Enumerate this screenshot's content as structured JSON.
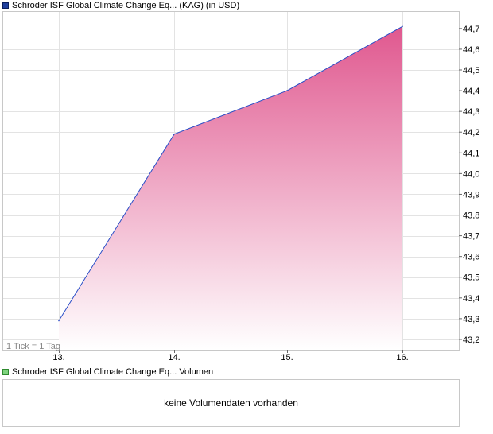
{
  "legend_price": {
    "label": "Schroder ISF Global Climate Change Eq... (KAG) (in USD)",
    "color": "#1f3f9e"
  },
  "legend_volume": {
    "label": "Schroder ISF Global Climate Change Eq... Volumen",
    "color": "#7ed37e"
  },
  "tick_note": "1 Tick = 1 Tag",
  "volume_message": "keine Volumendaten vorhanden",
  "chart_data": {
    "type": "area",
    "categories": [
      "13.",
      "14.",
      "15.",
      "16."
    ],
    "values": [
      43.29,
      44.19,
      44.4,
      44.71
    ],
    "y_ticks": [
      "43,2",
      "43,3",
      "43,4",
      "43,5",
      "43,6",
      "43,7",
      "43,8",
      "43,9",
      "44,0",
      "44,1",
      "44,2",
      "44,3",
      "44,4",
      "44,5",
      "44,6",
      "44,7"
    ],
    "y_tick_values": [
      43.2,
      43.3,
      43.4,
      43.5,
      43.6,
      43.7,
      43.8,
      43.9,
      44.0,
      44.1,
      44.2,
      44.3,
      44.4,
      44.5,
      44.6,
      44.7
    ],
    "ylim": [
      43.15,
      44.78
    ],
    "grid": true,
    "line_color": "#2a4ec7",
    "fill_top_color": "#e0588f",
    "fill_bottom_color": "#ffffff"
  }
}
